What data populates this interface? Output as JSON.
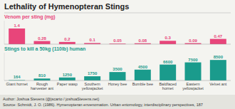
{
  "chart_data": [
    {
      "type": "bar",
      "title": "Lethality of Hymenopteran Stings",
      "ylabel": "Venom per sting (mg)",
      "categories": [
        "Giant hornet",
        "Rough\nharvester ant",
        "Paper wasp",
        "Southern\nyellowjacket",
        "Honey bee",
        "Bumble bee",
        "Baldfaced\nhornet",
        "Eastern\nyellowjacket",
        "Velvet ant"
      ],
      "values": [
        1.4,
        0.28,
        0.2,
        0.1,
        0.05,
        0.08,
        0.3,
        0.09,
        0.47
      ],
      "color": "#e8457a",
      "ylim": [
        0,
        2.1
      ],
      "data_labels": true,
      "tick_labels": false
    },
    {
      "type": "bar",
      "ylabel": "Stings to kill a 50kg (110lb) human",
      "categories": [
        "Giant hornet",
        "Rough\nharvester ant",
        "Paper wasp",
        "Southern\nyellowjacket",
        "Honey bee",
        "Bumble bee",
        "Baldfaced\nhornet",
        "Eastern\nyellowjacket",
        "Velvet ant"
      ],
      "values": [
        164,
        810,
        1250,
        1750,
        3500,
        4500,
        6600,
        7500,
        8500
      ],
      "color": "#1a9b8c",
      "ylim": [
        0,
        11500
      ],
      "data_labels": true,
      "tick_labels": "x",
      "annotations": [
        "Author: Joshua Stevens (@jscarto / joshuaStevens.net)",
        "Source: Schmidt, J. O. (1986). Hymenopteran envenomation. Urban entomology, interdisciplinary perspectives, 187"
      ]
    }
  ]
}
